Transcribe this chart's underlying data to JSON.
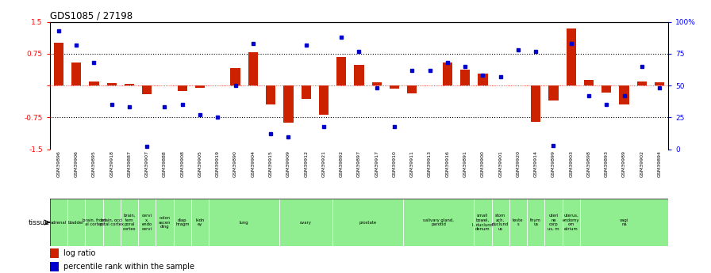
{
  "title": "GDS1085 / 27198",
  "gsm_labels": [
    "GSM39896",
    "GSM39906",
    "GSM39895",
    "GSM39918",
    "GSM39887",
    "GSM39907",
    "GSM39888",
    "GSM39908",
    "GSM39905",
    "GSM39919",
    "GSM39890",
    "GSM39904",
    "GSM39915",
    "GSM39909",
    "GSM39912",
    "GSM39921",
    "GSM39892",
    "GSM39897",
    "GSM39917",
    "GSM39910",
    "GSM39911",
    "GSM39913",
    "GSM39916",
    "GSM39891",
    "GSM39900",
    "GSM39901",
    "GSM39920",
    "GSM39914",
    "GSM39899",
    "GSM39903",
    "GSM39898",
    "GSM39893",
    "GSM39989",
    "GSM39902",
    "GSM39894"
  ],
  "log_ratio": [
    1.0,
    0.55,
    0.1,
    0.05,
    0.04,
    -0.2,
    0.0,
    -0.12,
    -0.05,
    0.0,
    0.42,
    0.78,
    -0.45,
    -0.88,
    -0.32,
    -0.68,
    0.68,
    0.48,
    0.08,
    -0.07,
    -0.18,
    0.0,
    0.55,
    0.38,
    0.28,
    0.0,
    0.0,
    -0.85,
    -0.35,
    1.35,
    0.13,
    -0.16,
    -0.45,
    0.1,
    0.08
  ],
  "percentile_rank": [
    0.93,
    0.82,
    0.68,
    0.35,
    0.33,
    0.02,
    0.33,
    0.35,
    0.27,
    0.25,
    0.5,
    0.83,
    0.12,
    0.1,
    0.82,
    0.18,
    0.88,
    0.77,
    0.48,
    0.18,
    0.62,
    0.62,
    0.68,
    0.65,
    0.58,
    0.57,
    0.78,
    0.77,
    0.03,
    0.83,
    0.42,
    0.35,
    0.42,
    0.65,
    0.48
  ],
  "tissue_groups": [
    {
      "label": "adrenal",
      "start": 0,
      "end": 1
    },
    {
      "label": "bladder",
      "start": 1,
      "end": 2
    },
    {
      "label": "brain, front\nal cortex",
      "start": 2,
      "end": 3
    },
    {
      "label": "brain, occi\npital cortex",
      "start": 3,
      "end": 4
    },
    {
      "label": "brain,\ntem\nporal\ncortex",
      "start": 4,
      "end": 5
    },
    {
      "label": "cervi\nx,\nendo\ncervi",
      "start": 5,
      "end": 6
    },
    {
      "label": "colon\nascen\nding",
      "start": 6,
      "end": 7
    },
    {
      "label": "diap\nhragm",
      "start": 7,
      "end": 8
    },
    {
      "label": "kidn\ney",
      "start": 8,
      "end": 9
    },
    {
      "label": "lung",
      "start": 9,
      "end": 13
    },
    {
      "label": "ovary",
      "start": 13,
      "end": 16
    },
    {
      "label": "prostate",
      "start": 16,
      "end": 20
    },
    {
      "label": "salivary gland,\nparotid",
      "start": 20,
      "end": 24
    },
    {
      "label": "small\nbowel,\nI, duclund\ndenum",
      "start": 24,
      "end": 25
    },
    {
      "label": "stom\nach,\nduclund\nus",
      "start": 25,
      "end": 26
    },
    {
      "label": "teste\ns",
      "start": 26,
      "end": 27
    },
    {
      "label": "thym\nus",
      "start": 27,
      "end": 28
    },
    {
      "label": "uteri\nne\ncorp\nus, m",
      "start": 28,
      "end": 29
    },
    {
      "label": "uterus,\nendomy\nom\netrium",
      "start": 29,
      "end": 30
    },
    {
      "label": "vagi\nna",
      "start": 30,
      "end": 35
    }
  ],
  "bar_color": "#cc2200",
  "dot_color": "#0000cc",
  "ylim": [
    -1.5,
    1.5
  ],
  "dotted_lines": [
    -0.75,
    0.0,
    0.75
  ],
  "tick_row_bg": "#c8c8c8",
  "green_color": "#90EE90"
}
